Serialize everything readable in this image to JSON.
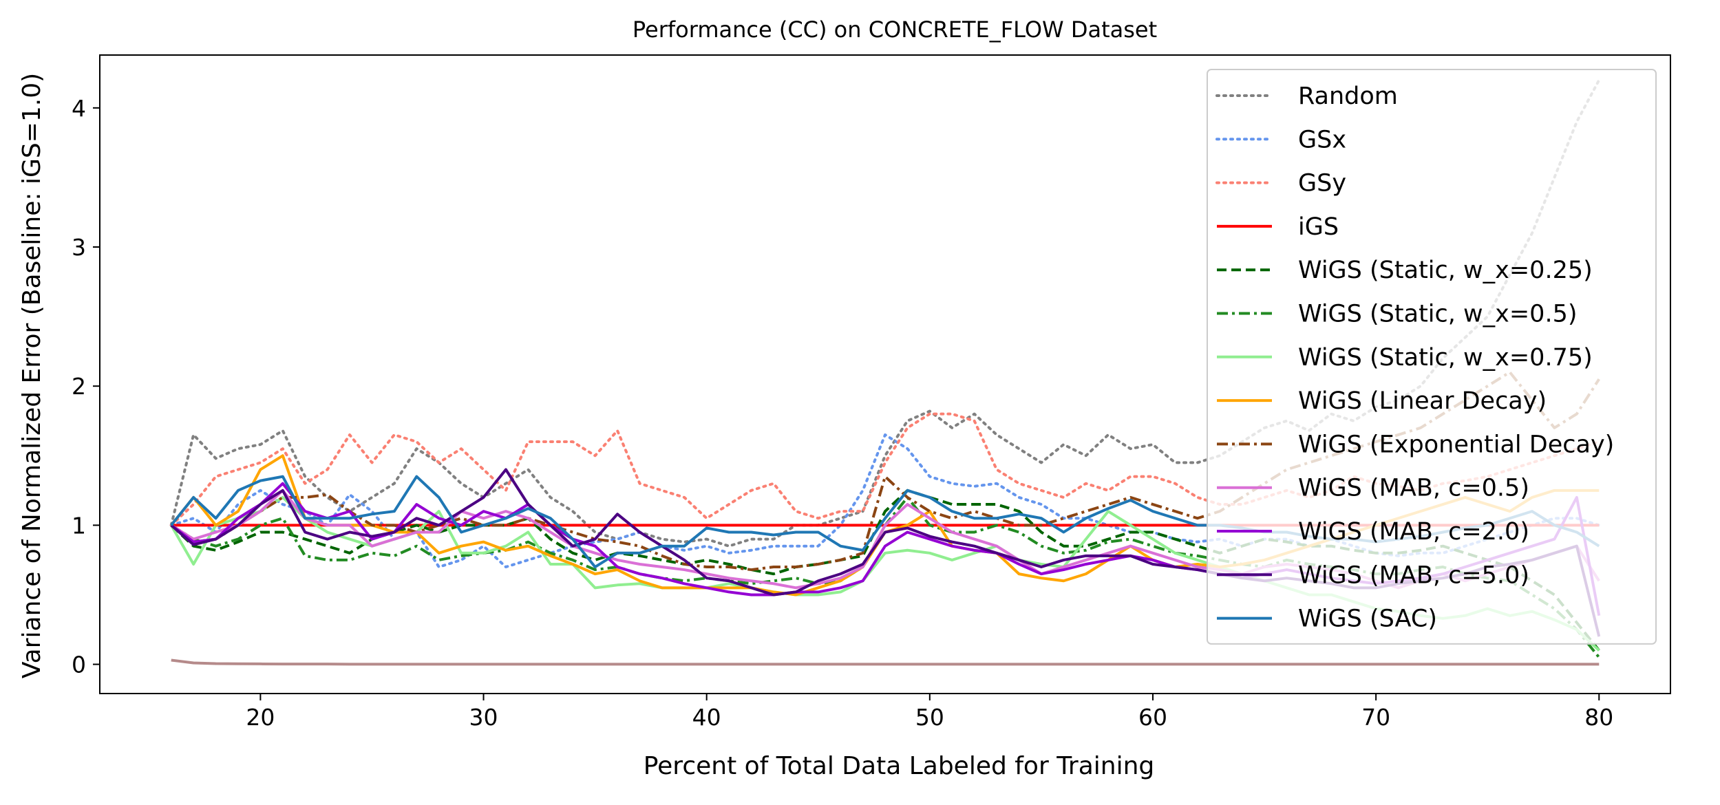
{
  "chart_data": {
    "type": "line",
    "title": "Performance (CC) on CONCRETE_FLOW Dataset",
    "xlabel": "Percent of Total Data Labeled for Training",
    "ylabel": "Variance of Normalized Error (Baseline: iGS=1.0)",
    "xlim": [
      12.8,
      83.2
    ],
    "ylim": [
      -0.21,
      4.38
    ],
    "xticks": [
      20,
      30,
      40,
      50,
      60,
      70,
      80
    ],
    "yticks": [
      0,
      1,
      2,
      3,
      4
    ],
    "grid": false,
    "legend_position": "top-right",
    "x": [
      16,
      17,
      18,
      19,
      20,
      21,
      22,
      23,
      24,
      25,
      26,
      27,
      28,
      29,
      30,
      31,
      32,
      33,
      34,
      35,
      36,
      37,
      38,
      39,
      40,
      41,
      42,
      43,
      44,
      45,
      46,
      47,
      48,
      49,
      50,
      51,
      52,
      53,
      54,
      55,
      56,
      57,
      58,
      59,
      60,
      61,
      62,
      63,
      64,
      65,
      66,
      67,
      68,
      69,
      70,
      71,
      72,
      73,
      74,
      75,
      76,
      77,
      78,
      79,
      80
    ],
    "baseline_overlay": {
      "description": "near-zero overlapping lines at the bottom of the plot",
      "color": "#b58a8a",
      "values": [
        0.03,
        0.01,
        0.005,
        0.004,
        0.003,
        0.002,
        0.002,
        0.002,
        0.001,
        0.001,
        0.001,
        0.001,
        0.001,
        0.001,
        0.001,
        0.001,
        0.001,
        0.001,
        0.001,
        0.001,
        0.001,
        0.001,
        0.001,
        0.001,
        0.001,
        0.001,
        0.001,
        0.001,
        0.001,
        0.001,
        0.001,
        0.001,
        0.001,
        0.001,
        0.001,
        0.001,
        0.001,
        0.001,
        0.001,
        0.001,
        0.001,
        0.001,
        0.001,
        0.001,
        0.001,
        0.001,
        0.001,
        0.001,
        0.001,
        0.001,
        0.001,
        0.001,
        0.001,
        0.001,
        0.001,
        0.001,
        0.001,
        0.001,
        0.001,
        0.001,
        0.001,
        0.001,
        0.001,
        0.001,
        0.001
      ]
    },
    "series": [
      {
        "name": "Random",
        "color": "#808080",
        "dash": "dotted",
        "values": [
          1.0,
          1.65,
          1.48,
          1.55,
          1.58,
          1.68,
          1.35,
          1.2,
          1.1,
          1.2,
          1.3,
          1.55,
          1.45,
          1.3,
          1.2,
          1.3,
          1.4,
          1.2,
          1.1,
          0.95,
          0.9,
          0.95,
          0.9,
          0.88,
          0.9,
          0.85,
          0.9,
          0.9,
          1.0,
          1.0,
          1.05,
          1.1,
          1.5,
          1.75,
          1.82,
          1.7,
          1.8,
          1.65,
          1.55,
          1.45,
          1.58,
          1.5,
          1.65,
          1.55,
          1.58,
          1.45,
          1.45,
          1.5,
          1.6,
          1.7,
          1.75,
          1.68,
          1.8,
          1.75,
          1.85,
          1.9,
          2.0,
          2.2,
          2.35,
          2.5,
          2.8,
          3.1,
          3.5,
          3.9,
          4.2
        ]
      },
      {
        "name": "GSx",
        "color": "#6495ed",
        "dash": "dotted",
        "values": [
          1.0,
          1.05,
          0.95,
          1.15,
          1.25,
          1.15,
          1.1,
          1.0,
          1.22,
          1.1,
          0.9,
          0.95,
          0.7,
          0.75,
          0.85,
          0.7,
          0.75,
          0.8,
          0.85,
          0.88,
          0.9,
          0.95,
          0.85,
          0.82,
          0.85,
          0.8,
          0.82,
          0.85,
          0.85,
          0.85,
          1.0,
          1.25,
          1.65,
          1.55,
          1.35,
          1.3,
          1.28,
          1.3,
          1.2,
          1.15,
          1.05,
          1.05,
          1.0,
          0.95,
          0.95,
          0.9,
          0.88,
          0.9,
          0.85,
          0.9,
          0.9,
          0.85,
          0.9,
          0.85,
          0.8,
          0.78,
          0.8,
          0.8,
          0.85,
          0.9,
          0.95,
          1.0,
          1.05,
          1.05,
          1.0
        ]
      },
      {
        "name": "GSy",
        "color": "#fa8072",
        "dash": "dotted",
        "values": [
          1.0,
          1.15,
          1.35,
          1.4,
          1.45,
          1.55,
          1.3,
          1.4,
          1.65,
          1.45,
          1.65,
          1.6,
          1.45,
          1.55,
          1.4,
          1.25,
          1.6,
          1.6,
          1.6,
          1.5,
          1.68,
          1.3,
          1.25,
          1.2,
          1.05,
          1.15,
          1.25,
          1.3,
          1.1,
          1.05,
          1.1,
          1.1,
          1.45,
          1.7,
          1.8,
          1.8,
          1.75,
          1.4,
          1.3,
          1.25,
          1.2,
          1.3,
          1.25,
          1.35,
          1.35,
          1.3,
          1.2,
          1.15,
          1.15,
          1.2,
          1.25,
          1.2,
          1.25,
          1.35,
          1.3,
          1.28,
          1.25,
          1.3,
          1.32,
          1.35,
          1.4,
          1.45,
          1.5,
          1.55,
          1.6
        ]
      },
      {
        "name": "iGS",
        "color": "#ff0000",
        "dash": "solid",
        "values": [
          1.0,
          1.0,
          1.0,
          1.0,
          1.0,
          1.0,
          1.0,
          1.0,
          1.0,
          1.0,
          1.0,
          1.0,
          1.0,
          1.0,
          1.0,
          1.0,
          1.0,
          1.0,
          1.0,
          1.0,
          1.0,
          1.0,
          1.0,
          1.0,
          1.0,
          1.0,
          1.0,
          1.0,
          1.0,
          1.0,
          1.0,
          1.0,
          1.0,
          1.0,
          1.0,
          1.0,
          1.0,
          1.0,
          1.0,
          1.0,
          1.0,
          1.0,
          1.0,
          1.0,
          1.0,
          1.0,
          1.0,
          1.0,
          1.0,
          1.0,
          1.0,
          1.0,
          1.0,
          1.0,
          1.0,
          1.0,
          1.0,
          1.0,
          1.0,
          1.0,
          1.0,
          1.0,
          1.0,
          1.0,
          1.0
        ]
      },
      {
        "name": "WiGS (Static, w_x=0.25)",
        "color": "#006400",
        "dash": "dashed",
        "values": [
          1.0,
          0.85,
          0.82,
          0.88,
          0.95,
          0.95,
          0.9,
          0.85,
          0.8,
          0.9,
          0.95,
          1.0,
          0.95,
          1.0,
          1.0,
          1.0,
          1.05,
          0.9,
          0.8,
          0.75,
          0.8,
          0.78,
          0.75,
          0.72,
          0.75,
          0.72,
          0.68,
          0.65,
          0.7,
          0.72,
          0.75,
          0.78,
          1.1,
          1.25,
          1.2,
          1.15,
          1.15,
          1.15,
          1.1,
          0.95,
          0.85,
          0.85,
          0.9,
          0.95,
          0.95,
          0.9,
          0.85,
          0.8,
          0.85,
          0.9,
          0.88,
          0.85,
          0.85,
          0.82,
          0.8,
          0.8,
          0.82,
          0.85,
          0.8,
          0.75,
          0.7,
          0.6,
          0.5,
          0.3,
          0.1
        ]
      },
      {
        "name": "WiGS (Static, w_x=0.5)",
        "color": "#228b22",
        "dash": "dashdot",
        "values": [
          1.0,
          0.9,
          0.85,
          0.9,
          1.0,
          1.05,
          0.78,
          0.75,
          0.75,
          0.8,
          0.78,
          0.85,
          0.75,
          0.78,
          0.8,
          0.82,
          0.88,
          0.8,
          0.75,
          0.68,
          0.7,
          0.65,
          0.62,
          0.6,
          0.62,
          0.6,
          0.58,
          0.6,
          0.62,
          0.58,
          0.6,
          0.7,
          1.0,
          1.2,
          1.0,
          0.95,
          0.95,
          1.0,
          0.95,
          0.85,
          0.8,
          0.82,
          0.88,
          0.9,
          0.85,
          0.8,
          0.78,
          0.75,
          0.72,
          0.7,
          0.75,
          0.72,
          0.7,
          0.68,
          0.65,
          0.65,
          0.68,
          0.7,
          0.65,
          0.62,
          0.6,
          0.5,
          0.4,
          0.25,
          0.05
        ]
      },
      {
        "name": "WiGS (Static, w_x=0.75)",
        "color": "#90ee90",
        "dash": "solid",
        "values": [
          1.0,
          0.72,
          1.0,
          1.05,
          1.1,
          1.2,
          1.05,
          0.95,
          0.9,
          0.85,
          0.9,
          0.95,
          1.1,
          0.8,
          0.8,
          0.85,
          0.95,
          0.72,
          0.72,
          0.55,
          0.57,
          0.58,
          0.55,
          0.55,
          0.55,
          0.58,
          0.55,
          0.52,
          0.5,
          0.5,
          0.52,
          0.6,
          0.8,
          0.82,
          0.8,
          0.75,
          0.8,
          0.85,
          0.75,
          0.72,
          0.7,
          0.9,
          1.1,
          1.0,
          0.9,
          0.8,
          0.75,
          0.7,
          0.65,
          0.6,
          0.55,
          0.5,
          0.5,
          0.45,
          0.4,
          0.38,
          0.35,
          0.33,
          0.35,
          0.4,
          0.35,
          0.38,
          0.32,
          0.25,
          0.1
        ]
      },
      {
        "name": "WiGS (Linear Decay)",
        "color": "#ffa500",
        "dash": "solid",
        "values": [
          1.0,
          1.2,
          1.0,
          1.1,
          1.4,
          1.5,
          1.05,
          1.0,
          1.0,
          1.0,
          0.95,
          0.95,
          0.8,
          0.85,
          0.88,
          0.82,
          0.85,
          0.78,
          0.72,
          0.65,
          0.68,
          0.6,
          0.55,
          0.55,
          0.55,
          0.55,
          0.55,
          0.52,
          0.5,
          0.55,
          0.6,
          0.7,
          0.95,
          1.0,
          1.1,
          0.85,
          0.82,
          0.8,
          0.65,
          0.62,
          0.6,
          0.65,
          0.75,
          0.85,
          0.75,
          0.7,
          0.72,
          0.7,
          0.72,
          0.75,
          0.8,
          0.85,
          0.9,
          0.95,
          1.0,
          1.05,
          1.1,
          1.15,
          1.2,
          1.15,
          1.1,
          1.2,
          1.25,
          1.25,
          1.25
        ]
      },
      {
        "name": "WiGS (Exponential Decay)",
        "color": "#8b4513",
        "dash": "dashdot",
        "values": [
          1.0,
          0.88,
          0.9,
          1.0,
          1.1,
          1.2,
          1.2,
          1.22,
          1.1,
          1.0,
          1.0,
          0.95,
          1.0,
          1.05,
          1.0,
          1.0,
          1.05,
          1.0,
          0.95,
          0.9,
          0.88,
          0.85,
          0.78,
          0.72,
          0.7,
          0.7,
          0.68,
          0.7,
          0.7,
          0.72,
          0.75,
          0.8,
          1.35,
          1.2,
          1.1,
          1.05,
          1.1,
          1.05,
          1.0,
          1.0,
          1.05,
          1.1,
          1.15,
          1.2,
          1.15,
          1.1,
          1.05,
          1.1,
          1.2,
          1.3,
          1.4,
          1.45,
          1.5,
          1.55,
          1.6,
          1.65,
          1.7,
          1.8,
          1.9,
          2.0,
          2.1,
          1.9,
          1.7,
          1.8,
          2.05
        ]
      },
      {
        "name": "WiGS (MAB, c=0.5)",
        "color": "#da70d6",
        "dash": "solid",
        "values": [
          1.0,
          0.9,
          0.95,
          1.0,
          1.1,
          1.25,
          1.05,
          1.0,
          1.0,
          0.85,
          0.9,
          0.95,
          0.95,
          1.1,
          1.05,
          1.1,
          1.05,
          0.95,
          0.85,
          0.8,
          0.75,
          0.72,
          0.7,
          0.68,
          0.65,
          0.62,
          0.6,
          0.58,
          0.55,
          0.58,
          0.62,
          0.7,
          1.0,
          1.15,
          1.05,
          0.95,
          0.9,
          0.85,
          0.75,
          0.65,
          0.7,
          0.75,
          0.8,
          0.85,
          0.8,
          0.75,
          0.7,
          0.68,
          0.65,
          0.7,
          0.72,
          0.7,
          0.68,
          0.65,
          0.6,
          0.55,
          0.6,
          0.65,
          0.6,
          0.65,
          0.7,
          0.75,
          0.8,
          0.85,
          0.6
        ]
      },
      {
        "name": "WiGS (MAB, c=2.0)",
        "color": "#9400d3",
        "dash": "solid",
        "values": [
          1.0,
          0.88,
          0.9,
          1.05,
          1.15,
          1.3,
          1.1,
          1.05,
          1.1,
          0.9,
          0.95,
          1.15,
          1.05,
          1.0,
          1.1,
          1.05,
          1.15,
          1.0,
          0.9,
          0.85,
          0.7,
          0.65,
          0.62,
          0.58,
          0.55,
          0.52,
          0.5,
          0.5,
          0.52,
          0.52,
          0.55,
          0.6,
          0.85,
          0.95,
          0.9,
          0.85,
          0.82,
          0.8,
          0.72,
          0.65,
          0.68,
          0.72,
          0.75,
          0.78,
          0.75,
          0.7,
          0.68,
          0.65,
          0.62,
          0.65,
          0.68,
          0.65,
          0.62,
          0.6,
          0.58,
          0.6,
          0.62,
          0.65,
          0.7,
          0.75,
          0.8,
          0.85,
          0.9,
          1.2,
          0.35
        ]
      },
      {
        "name": "WiGS (MAB, c=5.0)",
        "color": "#4b0082",
        "dash": "solid",
        "values": [
          1.0,
          0.86,
          0.9,
          1.0,
          1.15,
          1.25,
          0.95,
          0.9,
          0.95,
          0.92,
          0.95,
          1.05,
          1.0,
          1.1,
          1.2,
          1.4,
          1.15,
          1.0,
          0.85,
          0.9,
          1.08,
          0.95,
          0.85,
          0.75,
          0.62,
          0.6,
          0.55,
          0.5,
          0.52,
          0.6,
          0.65,
          0.72,
          0.95,
          0.98,
          0.92,
          0.88,
          0.85,
          0.8,
          0.75,
          0.7,
          0.75,
          0.78,
          0.78,
          0.78,
          0.72,
          0.7,
          0.68,
          0.65,
          0.62,
          0.6,
          0.62,
          0.6,
          0.58,
          0.55,
          0.55,
          0.58,
          0.6,
          0.62,
          0.65,
          0.7,
          0.72,
          0.75,
          0.8,
          0.85,
          0.2
        ]
      },
      {
        "name": "WiGS (SAC)",
        "color": "#1f77b4",
        "dash": "solid",
        "values": [
          1.0,
          1.2,
          1.05,
          1.25,
          1.32,
          1.35,
          1.05,
          1.05,
          1.05,
          1.08,
          1.1,
          1.35,
          1.2,
          0.95,
          1.0,
          1.05,
          1.12,
          1.05,
          0.9,
          0.7,
          0.8,
          0.8,
          0.85,
          0.85,
          0.98,
          0.95,
          0.95,
          0.93,
          0.95,
          0.95,
          0.85,
          0.82,
          1.05,
          1.25,
          1.2,
          1.1,
          1.05,
          1.05,
          1.08,
          1.05,
          0.95,
          1.05,
          1.12,
          1.18,
          1.1,
          1.05,
          1.0,
          1.0,
          0.98,
          0.95,
          0.95,
          0.92,
          0.9,
          0.9,
          0.88,
          0.9,
          0.92,
          0.95,
          0.98,
          1.0,
          1.05,
          1.1,
          1.0,
          0.95,
          0.85
        ]
      }
    ]
  }
}
